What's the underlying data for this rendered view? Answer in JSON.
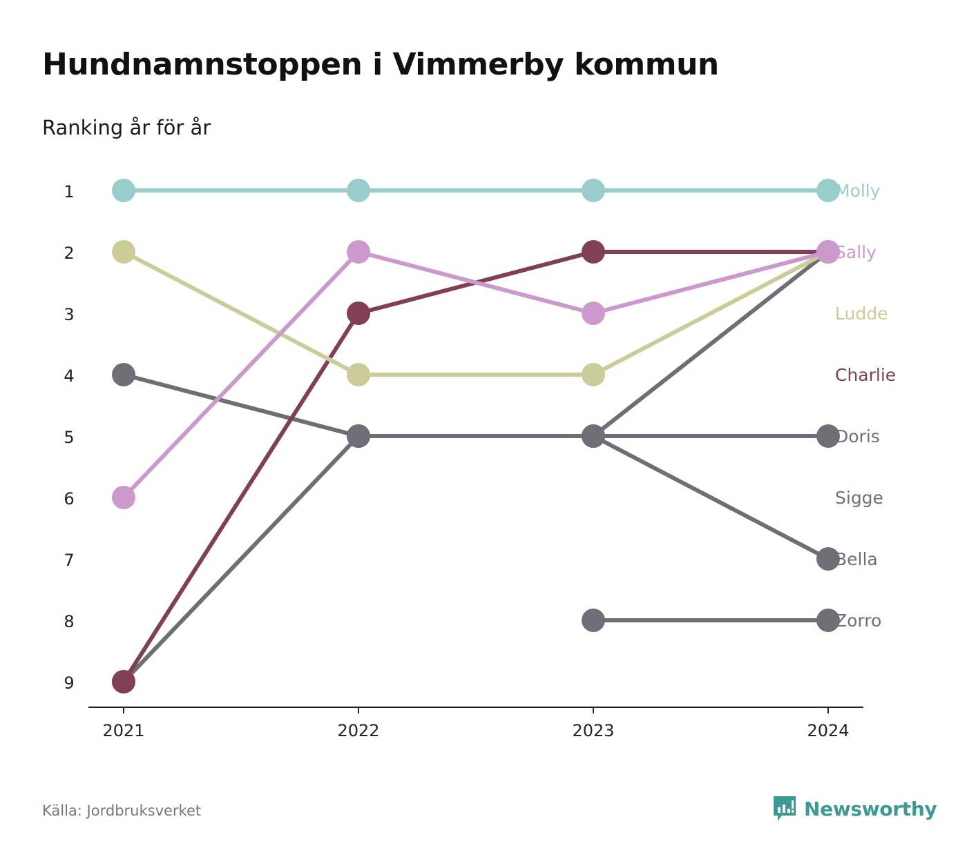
{
  "title": "Hundnamnstoppen i Vimmerby kommun",
  "subtitle": "Ranking år för år",
  "source": "Källa: Jordbruksverket",
  "brand": {
    "name": "Newsworthy",
    "icon": "chart-speech-bubble-icon",
    "color": "#3c9a93"
  },
  "chart_data": {
    "type": "line",
    "subtype": "bump",
    "x": [
      "2021",
      "2022",
      "2023",
      "2024"
    ],
    "y_ticks": [
      "1",
      "2",
      "3",
      "4",
      "5",
      "6",
      "7",
      "8",
      "9"
    ],
    "ylim": [
      1,
      9
    ],
    "y_inverted": true,
    "grid": false,
    "series": [
      {
        "name": "Molly",
        "values": [
          1,
          1,
          1,
          1
        ],
        "color": "#98cdcb",
        "label_rank": 1
      },
      {
        "name": "Sally",
        "values": [
          6,
          2,
          3,
          2
        ],
        "color": "#cc99cc",
        "label_rank": 2
      },
      {
        "name": "Ludde",
        "values": [
          2,
          4,
          4,
          2
        ],
        "color": "#cccc99",
        "label_rank": 3
      },
      {
        "name": "Charlie",
        "values": [
          9,
          3,
          2,
          2
        ],
        "color": "#813f55",
        "label_rank": 4
      },
      {
        "name": "Doris",
        "values": [
          null,
          5,
          5,
          5
        ],
        "color": "#6e6e76",
        "label_rank": 5
      },
      {
        "name": "Sigge",
        "values": [
          9,
          5,
          5,
          2
        ],
        "color": "#6e6e76",
        "label_rank": 6
      },
      {
        "name": "Bella",
        "values": [
          4,
          5,
          5,
          7
        ],
        "color": "#6e6e76",
        "label_rank": 7
      },
      {
        "name": "Zorro",
        "values": [
          null,
          null,
          8,
          8
        ],
        "color": "#6e6e76",
        "label_rank": 8
      }
    ]
  }
}
